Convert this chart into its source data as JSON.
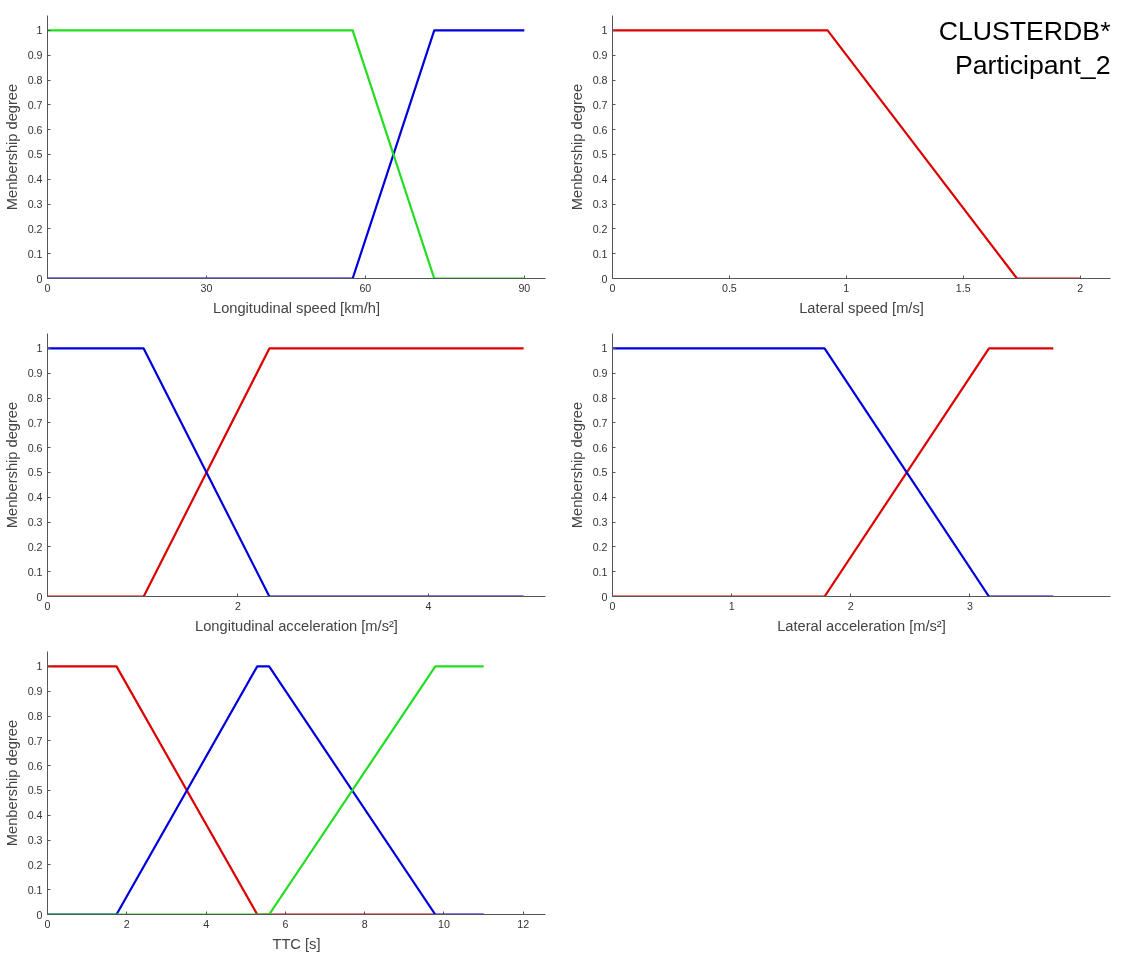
{
  "chart_data": [
    {
      "type": "line",
      "xlabel": "Longitudinal speed [km/h]",
      "ylabel": "Menbership degree",
      "xlim": [
        0,
        94
      ],
      "ylim": [
        0,
        1.06
      ],
      "xticks": [
        0,
        30,
        60,
        90
      ],
      "yticks": [
        0,
        0.1,
        0.2,
        0.3,
        0.4,
        0.5,
        0.6,
        0.7,
        0.8,
        0.9,
        1
      ],
      "grid": false,
      "series": [
        {
          "color": "#0000dd",
          "x": [
            0,
            57.6,
            73,
            90
          ],
          "values": [
            0,
            0,
            1,
            1
          ]
        },
        {
          "color": "#22dd22",
          "x": [
            0,
            57.6,
            73,
            90
          ],
          "values": [
            1,
            1,
            0,
            0
          ]
        }
      ]
    },
    {
      "type": "line",
      "xlabel": "Lateral speed [m/s]",
      "ylabel": "Menbership degree",
      "xlim": [
        0,
        2.13
      ],
      "ylim": [
        0,
        1.06
      ],
      "xticks": [
        0,
        0.5,
        1,
        1.5,
        2
      ],
      "yticks": [
        0,
        0.1,
        0.2,
        0.3,
        0.4,
        0.5,
        0.6,
        0.7,
        0.8,
        0.9,
        1
      ],
      "grid": false,
      "annotations": [
        "CLUSTERDB*",
        "Participant_2"
      ],
      "series": [
        {
          "color": "#dd0000",
          "x": [
            0,
            0.92,
            1.73,
            2
          ],
          "values": [
            1,
            1,
            0,
            0
          ]
        }
      ]
    },
    {
      "type": "line",
      "xlabel": "Longitudinal acceleration [m/s²]",
      "ylabel": "Menbership degree",
      "xlim": [
        0,
        5.23
      ],
      "ylim": [
        0,
        1.06
      ],
      "xticks": [
        0,
        2,
        4
      ],
      "yticks": [
        0,
        0.1,
        0.2,
        0.3,
        0.4,
        0.5,
        0.6,
        0.7,
        0.8,
        0.9,
        1
      ],
      "grid": false,
      "series": [
        {
          "color": "#dd0000",
          "x": [
            0,
            1.01,
            2.33,
            5
          ],
          "values": [
            0,
            0,
            1,
            1
          ]
        },
        {
          "color": "#0000dd",
          "x": [
            0,
            1.01,
            2.33,
            5
          ],
          "values": [
            1,
            1,
            0,
            0
          ]
        }
      ]
    },
    {
      "type": "line",
      "xlabel": "Lateral acceleration [m/s²]",
      "ylabel": "Menbership degree",
      "xlim": [
        0,
        4.18
      ],
      "ylim": [
        0,
        1.06
      ],
      "xticks": [
        0,
        1,
        2,
        3
      ],
      "yticks": [
        0,
        0.1,
        0.2,
        0.3,
        0.4,
        0.5,
        0.6,
        0.7,
        0.8,
        0.9,
        1
      ],
      "grid": false,
      "series": [
        {
          "color": "#dd0000",
          "x": [
            0,
            1.78,
            3.16,
            3.7
          ],
          "values": [
            0,
            0,
            1,
            1
          ]
        },
        {
          "color": "#0000dd",
          "x": [
            0,
            1.78,
            3.16,
            3.7
          ],
          "values": [
            1,
            1,
            0,
            0
          ]
        }
      ]
    },
    {
      "type": "line",
      "xlabel": "TTC [s]",
      "ylabel": "Menbership degree",
      "xlim": [
        0,
        12.56
      ],
      "ylim": [
        0,
        1.06
      ],
      "xticks": [
        0,
        2,
        4,
        6,
        8,
        10,
        12
      ],
      "yticks": [
        0,
        0.1,
        0.2,
        0.3,
        0.4,
        0.5,
        0.6,
        0.7,
        0.8,
        0.9,
        1
      ],
      "grid": false,
      "series": [
        {
          "color": "#dd0000",
          "x": [
            0,
            1.74,
            5.29,
            9.78
          ],
          "values": [
            1,
            1,
            0,
            0
          ]
        },
        {
          "color": "#0000dd",
          "x": [
            0,
            1.74,
            5.29,
            5.59,
            9.78,
            11
          ],
          "values": [
            0,
            0,
            1,
            1,
            0,
            0
          ]
        },
        {
          "color": "#22dd22",
          "x": [
            0,
            5.59,
            9.78,
            11
          ],
          "values": [
            0,
            0,
            1,
            1
          ]
        }
      ]
    }
  ]
}
